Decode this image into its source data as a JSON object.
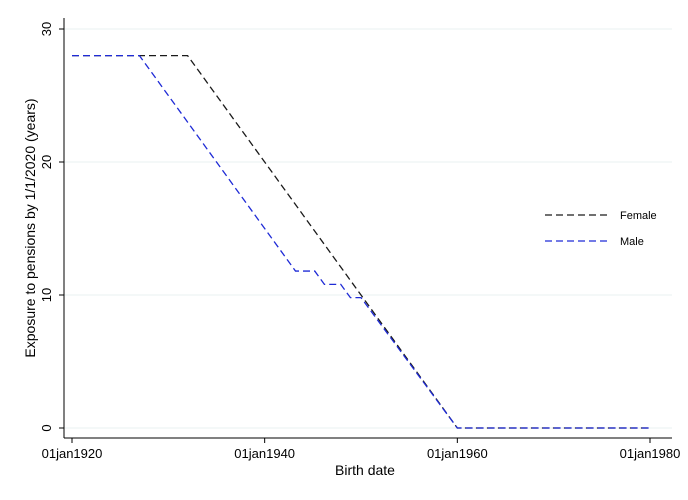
{
  "chart_data": {
    "type": "line",
    "title": "",
    "xlabel": "Birth date",
    "ylabel": "Exposure to pensions by 1/1/2020 (years)",
    "x_ticks": [
      {
        "value": 1920,
        "label": "01jan1920"
      },
      {
        "value": 1940,
        "label": "01jan1940"
      },
      {
        "value": 1960,
        "label": "01jan1960"
      },
      {
        "value": 1980,
        "label": "01jan1980"
      }
    ],
    "y_ticks": [
      {
        "value": 0,
        "label": "0"
      },
      {
        "value": 10,
        "label": "10"
      },
      {
        "value": 20,
        "label": "20"
      },
      {
        "value": 30,
        "label": "30"
      }
    ],
    "xlim": [
      1920,
      1980
    ],
    "ylim": [
      0,
      30
    ],
    "grid": "horizontal",
    "legend_position": "right",
    "series": [
      {
        "name": "Female",
        "color": "#1a1a1a",
        "dash": "dashed",
        "x": [
          1920,
          1932,
          1950,
          1960,
          1980
        ],
        "y": [
          28,
          28,
          10,
          0,
          0
        ]
      },
      {
        "name": "Male",
        "color": "#1f2bd6",
        "dash": "dashed",
        "x": [
          1920,
          1927,
          1943.2,
          1945.2,
          1946.2,
          1947.9,
          1948.9,
          1950,
          1960,
          1980
        ],
        "y": [
          28,
          28,
          11.8,
          11.8,
          10.8,
          10.8,
          9.8,
          9.8,
          0,
          0
        ]
      }
    ]
  }
}
